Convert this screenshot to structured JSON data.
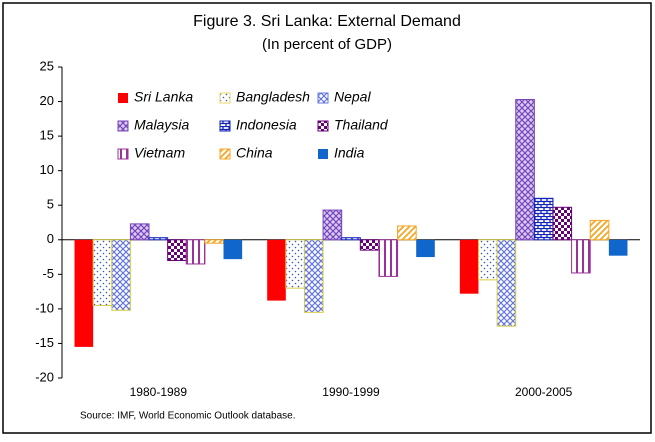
{
  "chart_data": {
    "type": "bar",
    "title": "Figure 3. Sri Lanka: External Demand",
    "subtitle": "(In percent of GDP)",
    "source": "Source: IMF, World Economic Outlook database.",
    "categories": [
      "1980-1989",
      "1990-1999",
      "2000-2005"
    ],
    "series": [
      {
        "name": "Sri Lanka",
        "color": "#ff0000",
        "values": [
          -15.5,
          -8.8,
          -7.8
        ]
      },
      {
        "name": "Bangladesh",
        "color": "#e8d860",
        "values": [
          -9.5,
          -7.0,
          -5.8
        ]
      },
      {
        "name": "Nepal",
        "color": "#6677dd",
        "values": [
          -10.2,
          -10.5,
          -12.5
        ]
      },
      {
        "name": "Malaysia",
        "color": "#7744bb",
        "values": [
          2.3,
          4.3,
          20.3
        ]
      },
      {
        "name": "Indonesia",
        "color": "#1122bb",
        "values": [
          0.3,
          0.3,
          6.0
        ]
      },
      {
        "name": "Thailand",
        "color": "#660077",
        "values": [
          -3.0,
          -1.5,
          4.7
        ]
      },
      {
        "name": "Vietnam",
        "color": "#993399",
        "values": [
          -3.5,
          -5.3,
          -4.8
        ]
      },
      {
        "name": "China",
        "color": "#f5a623",
        "values": [
          -0.5,
          2.0,
          2.8
        ]
      },
      {
        "name": "India",
        "color": "#1166cc",
        "values": [
          -2.8,
          -2.5,
          -2.3
        ]
      }
    ],
    "ylim": [
      -20,
      25
    ],
    "yticks": [
      -20,
      -15,
      -10,
      -5,
      0,
      5,
      10,
      15,
      20,
      25
    ]
  }
}
